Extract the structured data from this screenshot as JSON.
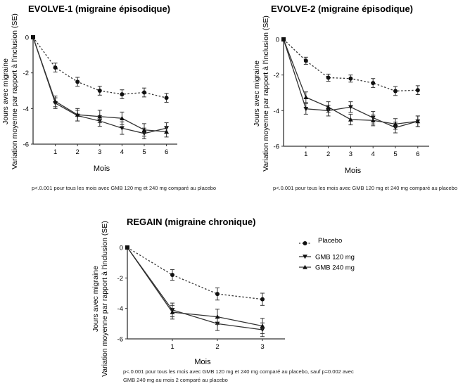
{
  "colors": {
    "line": "#333333",
    "marker": "#111111",
    "axis": "#333333",
    "background": "#ffffff"
  },
  "legend": {
    "items": [
      {
        "label": "Placebo",
        "style": "dotted",
        "marker": "circle"
      },
      {
        "label": "GMB 120 mg",
        "style": "solid",
        "marker": "triangle-down"
      },
      {
        "label": "GMB 240 mg",
        "style": "solid",
        "marker": "triangle-up"
      }
    ]
  },
  "chart_data": [
    {
      "id": "evolve1",
      "type": "line",
      "title": "EVOLVE-1 (migraine épisodique)",
      "xlabel": "Mois",
      "ylabel": [
        "Jours avec migraine",
        "Variation moyenne par rapport à l'inclusion (SE)"
      ],
      "x": [
        0,
        1,
        2,
        3,
        4,
        5,
        6
      ],
      "xticks": [
        "1",
        "2",
        "3",
        "4",
        "5",
        "6"
      ],
      "yticks": [
        "0",
        "-2",
        "-4",
        "-6"
      ],
      "ylim": [
        -6,
        0
      ],
      "grid": false,
      "series": [
        {
          "name": "Placebo",
          "values": [
            0,
            -1.7,
            -2.5,
            -3.0,
            -3.2,
            -3.1,
            -3.4
          ],
          "se": [
            0,
            0.25,
            0.25,
            0.25,
            0.25,
            0.25,
            0.25
          ]
        },
        {
          "name": "GMB 120 mg",
          "values": [
            0,
            -3.7,
            -4.4,
            -4.7,
            -5.1,
            -5.4,
            -5.1
          ],
          "se": [
            0,
            0.3,
            0.3,
            0.3,
            0.35,
            0.3,
            0.3
          ]
        },
        {
          "name": "GMB 240 mg",
          "values": [
            0,
            -3.6,
            -4.35,
            -4.45,
            -4.55,
            -5.2,
            -5.3
          ],
          "se": [
            0,
            0.3,
            0.35,
            0.35,
            0.35,
            0.35,
            0.3
          ]
        }
      ],
      "note": "p<.0.001 pour tous les mois avec GMB 120 mg et 240 mg comparé au placebo"
    },
    {
      "id": "evolve2",
      "type": "line",
      "title": "EVOLVE-2 (migraine épisodique)",
      "xlabel": "Mois",
      "ylabel": [
        "Jours avec migraine",
        "Variation moyenne par rapport à l'inclusion (SE)"
      ],
      "x": [
        0,
        1,
        2,
        3,
        4,
        5,
        6
      ],
      "xticks": [
        "1",
        "2",
        "3",
        "4",
        "5",
        "6"
      ],
      "yticks": [
        "0",
        "-2",
        "-4",
        "-6"
      ],
      "ylim": [
        -6,
        0
      ],
      "grid": false,
      "series": [
        {
          "name": "Placebo",
          "values": [
            0,
            -1.2,
            -2.15,
            -2.2,
            -2.45,
            -2.9,
            -2.85
          ],
          "se": [
            0,
            0.2,
            0.2,
            0.2,
            0.25,
            0.25,
            0.25
          ]
        },
        {
          "name": "GMB 120 mg",
          "values": [
            0,
            -3.9,
            -4.0,
            -3.8,
            -4.4,
            -4.95,
            -4.6
          ],
          "se": [
            0,
            0.3,
            0.3,
            0.3,
            0.35,
            0.3,
            0.3
          ]
        },
        {
          "name": "GMB 240 mg",
          "values": [
            0,
            -3.25,
            -3.8,
            -4.5,
            -4.55,
            -4.75,
            -4.6
          ],
          "se": [
            0,
            0.3,
            0.3,
            0.3,
            0.3,
            0.3,
            0.3
          ]
        }
      ],
      "note": "p<.0.001 pour tous les mois avec GMB 120 mg et 240 mg comparé au placebo"
    },
    {
      "id": "regain",
      "type": "line",
      "title": "REGAIN (migraine chronique)",
      "xlabel": "Mois",
      "ylabel": [
        "Jours avec migraine",
        "Variation moyenne par rapport à l'inclusion (SE)"
      ],
      "x": [
        0,
        1,
        2,
        3
      ],
      "xticks": [
        "1",
        "2",
        "3"
      ],
      "yticks": [
        "0",
        "-2",
        "-4",
        "-6"
      ],
      "ylim": [
        -6,
        0
      ],
      "grid": false,
      "series": [
        {
          "name": "Placebo",
          "values": [
            0,
            -1.8,
            -3.05,
            -3.4
          ],
          "se": [
            0,
            0.35,
            0.4,
            0.4
          ]
        },
        {
          "name": "GMB 120 mg",
          "values": [
            0,
            -4.1,
            -5.0,
            -5.4
          ],
          "se": [
            0,
            0.45,
            0.45,
            0.45
          ]
        },
        {
          "name": "GMB 240 mg",
          "values": [
            0,
            -4.25,
            -4.55,
            -5.15
          ],
          "se": [
            0,
            0.45,
            0.5,
            0.5
          ]
        }
      ],
      "note": [
        "p<.0.001 pour tous les mois avec GMB 120 mg et 240 mg comparé au placebo, sauf p=0.002 avec",
        "GMB 240 mg au mois 2 comparé au placebo"
      ]
    }
  ]
}
